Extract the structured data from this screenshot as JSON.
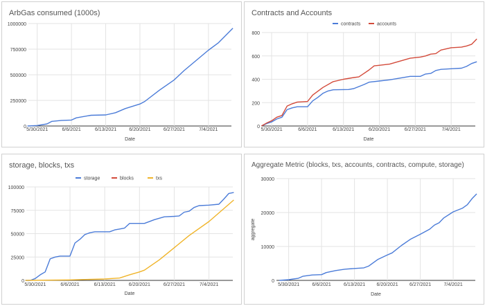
{
  "chart_data": [
    {
      "type": "line",
      "title": "ArbGas consumed (1000s)",
      "xlabel": "Date",
      "ylabel": "",
      "x_ticks": [
        "5/30/2021",
        "6/6/2021",
        "6/13/2021",
        "6/20/2021",
        "6/27/2021",
        "7/4/2021"
      ],
      "x_unit": "days since 5/30/2021",
      "xlim": [
        -1.8,
        39.7
      ],
      "ylim": [
        0,
        1000000
      ],
      "y_ticks": [
        "0",
        "250000",
        "500000",
        "750000",
        "1000000"
      ],
      "legend": "none",
      "series": [
        {
          "name": "ArbGas",
          "color": "#4a7bd8",
          "x": [
            -2,
            0,
            2,
            3,
            5,
            7,
            8,
            11,
            14,
            16,
            18,
            21,
            22,
            25,
            28,
            30,
            35,
            37,
            40
          ],
          "values": [
            0,
            5000,
            20000,
            45000,
            55000,
            58000,
            80000,
            105000,
            108000,
            130000,
            170000,
            215000,
            240000,
            350000,
            450000,
            540000,
            740000,
            810000,
            955000
          ]
        }
      ]
    },
    {
      "type": "line",
      "title": "Contracts and Accounts",
      "xlabel": "Date",
      "ylabel": "",
      "x_ticks": [
        "5/30/2021",
        "6/6/2021",
        "6/13/2021",
        "6/20/2021",
        "6/27/2021",
        "7/4/2021"
      ],
      "xlim": [
        -1.9,
        39.7
      ],
      "ylim": [
        0,
        800
      ],
      "y_ticks": [
        "0",
        "200",
        "400",
        "600",
        "800"
      ],
      "legend": "top",
      "series": [
        {
          "name": "contracts",
          "color": "#4a7bd8",
          "x": [
            -2,
            -1,
            0,
            1,
            2,
            3,
            4,
            5,
            7,
            8,
            9,
            10,
            11,
            12,
            15,
            16,
            18,
            19,
            21,
            23,
            25,
            27,
            29,
            30,
            31,
            32,
            33,
            35,
            37,
            38,
            39,
            40
          ],
          "values": [
            0,
            20,
            35,
            60,
            75,
            140,
            155,
            165,
            165,
            215,
            245,
            280,
            300,
            310,
            312,
            320,
            355,
            375,
            385,
            395,
            410,
            425,
            425,
            445,
            450,
            475,
            485,
            490,
            495,
            510,
            535,
            550
          ]
        },
        {
          "name": "accounts",
          "color": "#d34a3a",
          "x": [
            -2,
            -1,
            0,
            1,
            2,
            3,
            4,
            5,
            7,
            8,
            10,
            12,
            14,
            16,
            17,
            18,
            19,
            20,
            21,
            23,
            25,
            27,
            29,
            30,
            31,
            32,
            33,
            35,
            37,
            38,
            39,
            40
          ],
          "values": [
            0,
            25,
            45,
            75,
            90,
            170,
            190,
            205,
            210,
            265,
            330,
            380,
            400,
            415,
            420,
            450,
            480,
            515,
            520,
            530,
            555,
            580,
            590,
            600,
            615,
            620,
            650,
            670,
            675,
            685,
            700,
            745
          ]
        }
      ]
    },
    {
      "type": "line",
      "title": "storage, blocks, txs",
      "xlabel": "Date",
      "ylabel": "",
      "x_ticks": [
        "5/30/2021",
        "6/6/2021",
        "6/13/2021",
        "6/20/2021",
        "6/27/2021",
        "7/4/2021"
      ],
      "xlim": [
        -1.8,
        39.8
      ],
      "ylim": [
        0,
        100000
      ],
      "y_ticks": [
        "0",
        "25000",
        "50000",
        "75000",
        "100000"
      ],
      "legend": "top",
      "series": [
        {
          "name": "storage",
          "color": "#4a7bd8",
          "x": [
            -2,
            -1,
            0,
            1,
            2,
            3,
            4,
            5,
            7,
            8,
            9,
            10,
            11,
            12,
            15,
            16,
            17,
            18,
            19,
            22,
            24,
            26,
            28,
            29,
            30,
            31,
            32,
            33,
            35,
            37,
            38,
            39,
            40
          ],
          "values": [
            0,
            0,
            2000,
            6000,
            9000,
            23000,
            25000,
            26000,
            26000,
            40000,
            44000,
            49000,
            51000,
            52000,
            52000,
            54000,
            55000,
            56000,
            61000,
            61000,
            65000,
            68000,
            68500,
            69000,
            73000,
            74000,
            78000,
            80000,
            80500,
            81500,
            87000,
            93000,
            94000
          ]
        },
        {
          "name": "blocks",
          "color": "#d34a3a",
          "x": [],
          "values": []
        },
        {
          "name": "txs",
          "color": "#f0b429",
          "x": [
            -2,
            7,
            14,
            17,
            19,
            21,
            22,
            25,
            28,
            31,
            35,
            40
          ],
          "values": [
            0,
            500,
            1500,
            2500,
            6000,
            9000,
            11000,
            22000,
            35000,
            48000,
            63000,
            86000
          ]
        }
      ]
    },
    {
      "type": "line",
      "title": "Aggregate Metric (blocks, txs, accounts, contracts, compute, storage)",
      "xlabel": "Date",
      "ylabel": "aggregate",
      "x_ticks": [
        "5/30/2021",
        "6/6/2021",
        "6/13/2021",
        "6/20/2021",
        "6/27/2021",
        "7/4/2021"
      ],
      "xlim": [
        -2.6,
        39.7
      ],
      "ylim": [
        0,
        30000
      ],
      "y_ticks": [
        "0",
        "10000",
        "20000",
        "30000"
      ],
      "legend": "none",
      "series": [
        {
          "name": "aggregate",
          "color": "#4a7bd8",
          "x": [
            -2,
            0,
            1,
            2,
            3,
            5,
            7,
            8,
            10,
            12,
            14,
            16,
            17,
            19,
            21,
            22,
            24,
            26,
            28,
            30,
            31,
            32,
            33,
            35,
            37,
            38,
            39,
            40
          ],
          "values": [
            0,
            200,
            400,
            600,
            1200,
            1600,
            1700,
            2300,
            2900,
            3300,
            3500,
            3700,
            4200,
            6200,
            7500,
            8100,
            10300,
            12200,
            13600,
            15100,
            16300,
            17000,
            18400,
            20200,
            21300,
            22300,
            24100,
            25500
          ]
        }
      ]
    }
  ]
}
